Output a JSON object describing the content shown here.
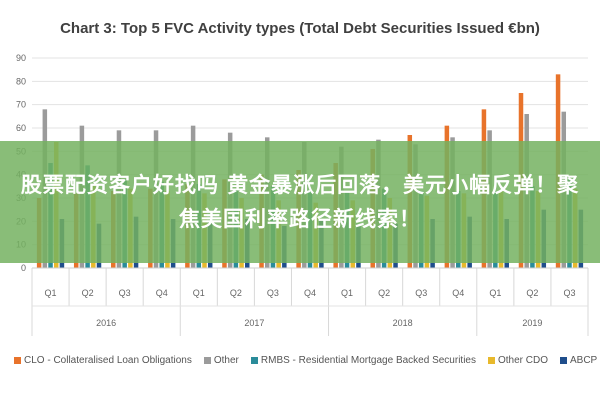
{
  "banner": {
    "headline": "股票配资客户好找吗 黄金暴涨后回落，美元小幅反弹！聚焦美国利率路径新线索！"
  },
  "chart_data": {
    "type": "bar",
    "title": "Chart 3: Top 5 FVC Activity types (Total Debt Securities Issued €bn)",
    "ylim": [
      0,
      90
    ],
    "yticks": [
      0,
      10,
      20,
      30,
      40,
      50,
      60,
      70,
      80,
      90
    ],
    "grid": true,
    "legend_position": "bottom",
    "categories": [
      "Q1",
      "Q2",
      "Q3",
      "Q4",
      "Q1",
      "Q2",
      "Q3",
      "Q4",
      "Q1",
      "Q2",
      "Q3",
      "Q4",
      "Q1",
      "Q2",
      "Q3"
    ],
    "years": [
      {
        "label": "2016",
        "quarters": 4
      },
      {
        "label": "2017",
        "quarters": 4
      },
      {
        "label": "2018",
        "quarters": 4
      },
      {
        "label": "2019",
        "quarters": 3
      }
    ],
    "series": [
      {
        "name": "CLO - Collateralised Loan Obligations",
        "color": "#e8732b",
        "values": [
          30,
          32,
          33,
          34,
          36,
          38,
          40,
          42,
          45,
          51,
          57,
          61,
          68,
          75,
          83
        ]
      },
      {
        "name": "Other",
        "color": "#9b9b9b",
        "values": [
          68,
          61,
          59,
          59,
          61,
          58,
          56,
          54,
          52,
          55,
          53,
          56,
          59,
          66,
          67
        ]
      },
      {
        "name": "RMBS - Residential Mortgage Backed Securities",
        "color": "#2a8c9a",
        "values": [
          45,
          44,
          38,
          37,
          36,
          34,
          35,
          33,
          33,
          34,
          33,
          33,
          33,
          35,
          38
        ]
      },
      {
        "name": "Other CDO",
        "color": "#e8b92c",
        "values": [
          54,
          36,
          34,
          33,
          32,
          30,
          29,
          28,
          29,
          30,
          31,
          32,
          33,
          33,
          34
        ]
      },
      {
        "name": "ABCP",
        "color": "#1f4e8c",
        "values": [
          21,
          19,
          22,
          21,
          20,
          21,
          18,
          21,
          19,
          19,
          21,
          22,
          21,
          25,
          25
        ]
      }
    ]
  }
}
